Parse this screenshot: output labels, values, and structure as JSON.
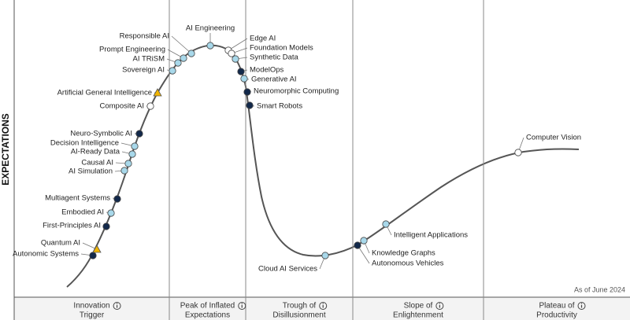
{
  "y_axis_label": "EXPECTATIONS",
  "note": "As of June 2024",
  "phases": [
    [
      "Innovation",
      "Trigger"
    ],
    [
      "Peak of Inflated",
      "Expectations"
    ],
    [
      "Trough of",
      "Disillusionment"
    ],
    [
      "Slope of",
      "Enlightenment"
    ],
    [
      "Plateau of",
      "Productivity"
    ]
  ],
  "nodes": [
    {
      "label": "Autonomic Systems",
      "color": "#13294b"
    },
    {
      "label": "Quantum AI",
      "color": "#f0b400"
    },
    {
      "label": "First-Principles AI",
      "color": "#13294b"
    },
    {
      "label": "Embodied AI",
      "color": "#a8d8ea"
    },
    {
      "label": "Multiagent Systems",
      "color": "#13294b"
    },
    {
      "label": "AI Simulation",
      "color": "#a8d8ea"
    },
    {
      "label": "Causal AI",
      "color": "#a8d8ea"
    },
    {
      "label": "AI-Ready Data",
      "color": "#a8d8ea"
    },
    {
      "label": "Decision Intelligence",
      "color": "#a8d8ea"
    },
    {
      "label": "Neuro-Symbolic AI",
      "color": "#13294b"
    },
    {
      "label": "Composite AI",
      "color": "#ffffff"
    },
    {
      "label": "Artificial General Intelligence",
      "color": "#f0b400"
    },
    {
      "label": "Sovereign AI",
      "color": "#a8d8ea"
    },
    {
      "label": "AI TRiSM",
      "color": "#a8d8ea"
    },
    {
      "label": "Prompt Engineering",
      "color": "#a8d8ea"
    },
    {
      "label": "Responsible AI",
      "color": "#a8d8ea"
    },
    {
      "label": "AI Engineering",
      "color": "#a8d8ea"
    },
    {
      "label": "Edge AI",
      "color": "#ffffff"
    },
    {
      "label": "Foundation Models",
      "color": "#ffffff"
    },
    {
      "label": "Synthetic Data",
      "color": "#a8d8ea"
    },
    {
      "label": "ModelOps",
      "color": "#13294b"
    },
    {
      "label": "Generative AI",
      "color": "#a8d8ea"
    },
    {
      "label": "Neuromorphic Computing",
      "color": "#13294b"
    },
    {
      "label": "Smart Robots",
      "color": "#13294b"
    },
    {
      "label": "Cloud AI Services",
      "color": "#a8d8ea"
    },
    {
      "label": "Knowledge Graphs",
      "color": "#a8d8ea"
    },
    {
      "label": "Autonomous Vehicles",
      "color": "#13294b"
    },
    {
      "label": "Intelligent Applications",
      "color": "#a8d8ea"
    },
    {
      "label": "Computer Vision",
      "color": "#ffffff"
    }
  ]
}
